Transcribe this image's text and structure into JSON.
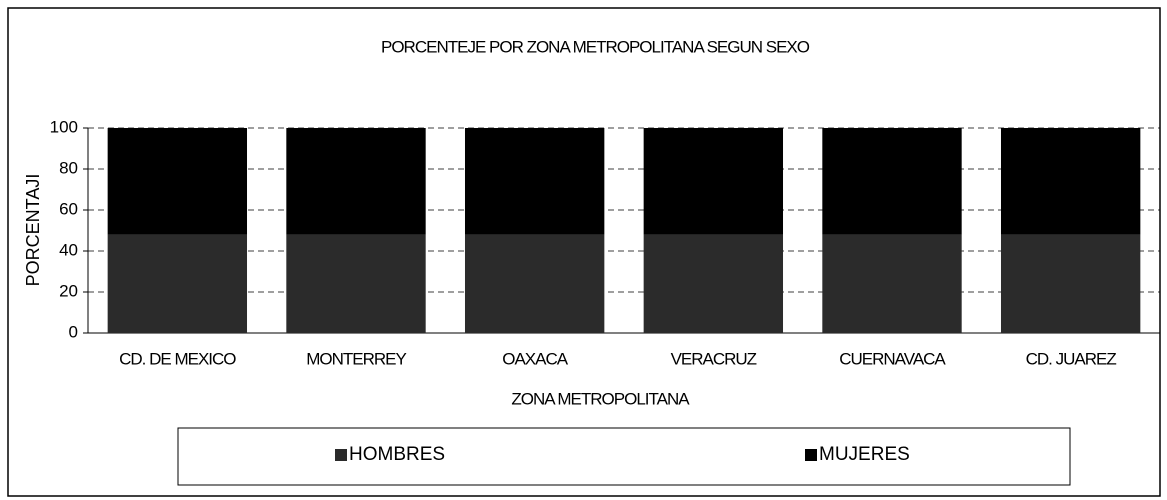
{
  "chart_data": {
    "type": "stacked_bar",
    "title": "PORCENTEJE POR ZONA METROPOLITANA SEGUN SEXO",
    "x_label": "ZONA METROPOLITANA",
    "y_label": "PORCENTAJI",
    "categories": [
      "CD. DE MEXICO",
      "MONTERREY",
      "OAXACA",
      "VERACRUZ",
      "CUERNAVACA",
      "CD. JUAREZ"
    ],
    "series": [
      {
        "name": "HOMBRES",
        "color": "#2b2b2b",
        "values": [
          48,
          48,
          48,
          48,
          48,
          48
        ]
      },
      {
        "name": "MUJERES",
        "color": "#000000",
        "values": [
          52,
          52,
          52,
          52,
          52,
          52
        ]
      }
    ],
    "ylim": [
      0,
      100
    ],
    "yticks": [
      0,
      20,
      40,
      60,
      80,
      100
    ],
    "grid": true
  }
}
